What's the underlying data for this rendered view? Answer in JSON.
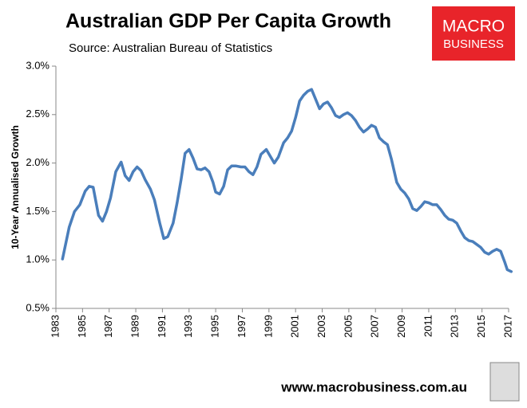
{
  "chart_data": {
    "type": "line",
    "title": "Australian GDP Per Capita Growth",
    "subtitle": "Source: Australian Bureau of Statistics",
    "ylabel": "10-Year Annualised Growth",
    "color": "#4a7ebb",
    "grid": false,
    "xlim": [
      1983,
      2017
    ],
    "xticks": [
      1983,
      1985,
      1987,
      1989,
      1991,
      1993,
      1995,
      1997,
      1999,
      2001,
      2003,
      2005,
      2007,
      2009,
      2011,
      2013,
      2015,
      2017
    ],
    "ylim": [
      0.5,
      3.0
    ],
    "yticks": [
      {
        "value": 0.5,
        "label": "0.5%"
      },
      {
        "value": 1.0,
        "label": "1.0%"
      },
      {
        "value": 1.5,
        "label": "1.5%"
      },
      {
        "value": 2.0,
        "label": "2.0%"
      },
      {
        "value": 2.5,
        "label": "2.5%"
      },
      {
        "value": 3.0,
        "label": "3.0%"
      }
    ],
    "x": [
      1983.5,
      1984,
      1984.4,
      1984.8,
      1985.2,
      1985.5,
      1985.8,
      1986.2,
      1986.5,
      1986.8,
      1987.1,
      1987.5,
      1987.9,
      1988.2,
      1988.5,
      1988.8,
      1989.1,
      1989.4,
      1989.7,
      1990.1,
      1990.4,
      1990.8,
      1991.1,
      1991.4,
      1991.8,
      1992.1,
      1992.4,
      1992.7,
      1993.0,
      1993.3,
      1993.6,
      1993.9,
      1994.2,
      1994.5,
      1994.8,
      1995.0,
      1995.3,
      1995.6,
      1995.9,
      1996.2,
      1996.5,
      1996.9,
      1997.2,
      1997.5,
      1997.8,
      1998.1,
      1998.4,
      1998.8,
      1999.1,
      1999.4,
      1999.7,
      2000.1,
      2000.4,
      2000.7,
      2001.0,
      2001.3,
      2001.6,
      2001.9,
      2002.2,
      2002.5,
      2002.8,
      2003.1,
      2003.4,
      2003.7,
      2004.0,
      2004.3,
      2004.6,
      2004.9,
      2005.2,
      2005.5,
      2005.8,
      2006.1,
      2006.4,
      2006.7,
      2007.0,
      2007.3,
      2007.6,
      2007.9,
      2008.2,
      2008.6,
      2008.9,
      2009.2,
      2009.5,
      2009.8,
      2010.1,
      2010.4,
      2010.7,
      2011.0,
      2011.3,
      2011.6,
      2011.9,
      2012.2,
      2012.5,
      2012.8,
      2013.1,
      2013.4,
      2013.7,
      2014.0,
      2014.3,
      2014.6,
      2014.9,
      2015.2,
      2015.5,
      2015.8,
      2016.1,
      2016.4,
      2016.7,
      2016.9,
      2017.2
    ],
    "values": [
      1.01,
      1.34,
      1.5,
      1.57,
      1.71,
      1.76,
      1.75,
      1.46,
      1.4,
      1.5,
      1.64,
      1.91,
      2.01,
      1.87,
      1.82,
      1.91,
      1.96,
      1.92,
      1.83,
      1.73,
      1.62,
      1.38,
      1.22,
      1.24,
      1.38,
      1.59,
      1.83,
      2.1,
      2.14,
      2.05,
      1.94,
      1.93,
      1.95,
      1.91,
      1.8,
      1.7,
      1.68,
      1.76,
      1.93,
      1.97,
      1.97,
      1.96,
      1.96,
      1.91,
      1.88,
      1.96,
      2.09,
      2.14,
      2.07,
      2.0,
      2.06,
      2.21,
      2.26,
      2.33,
      2.47,
      2.64,
      2.7,
      2.74,
      2.76,
      2.66,
      2.56,
      2.61,
      2.63,
      2.57,
      2.49,
      2.47,
      2.5,
      2.52,
      2.49,
      2.44,
      2.37,
      2.32,
      2.35,
      2.39,
      2.37,
      2.26,
      2.22,
      2.19,
      2.04,
      1.8,
      1.73,
      1.69,
      1.63,
      1.53,
      1.51,
      1.55,
      1.6,
      1.59,
      1.57,
      1.57,
      1.52,
      1.46,
      1.42,
      1.41,
      1.38,
      1.3,
      1.23,
      1.2,
      1.19,
      1.16,
      1.13,
      1.08,
      1.06,
      1.09,
      1.11,
      1.09,
      0.98,
      0.9,
      0.88
    ]
  },
  "branding": {
    "logo_line1": "MACRO",
    "logo_line2": "BUSINESS",
    "website": "www.macrobusiness.com.au"
  }
}
